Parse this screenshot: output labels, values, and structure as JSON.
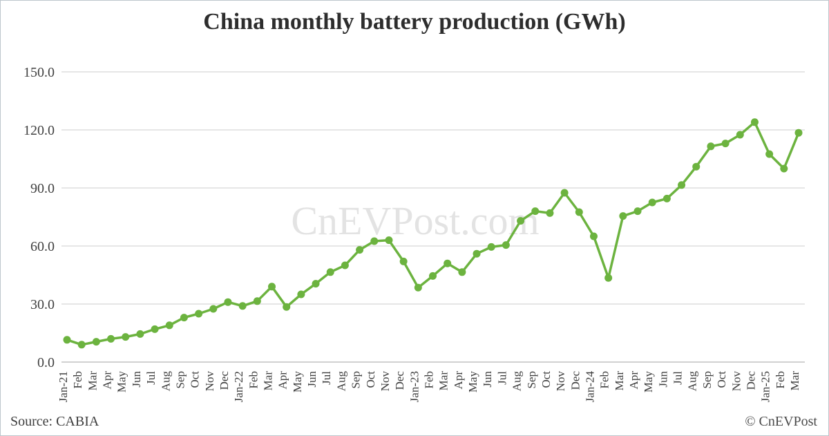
{
  "title": "China monthly battery production (GWh)",
  "watermark": "CnEVPost.com",
  "footer": {
    "source": "Source: CABIA",
    "credit": "© CnEVPost"
  },
  "colors": {
    "series_green": "#6cb33f",
    "gridline": "#d6d6d6",
    "axis_line": "#c2c2c2",
    "tick_text": "#3f3f3f",
    "watermark_gray": "#e3e3e3",
    "title_text": "#2d2d2d"
  },
  "chart_data": {
    "type": "line",
    "title": "China monthly battery production (GWh)",
    "xlabel": "",
    "ylabel": "",
    "ylim": [
      0,
      150
    ],
    "yticks": [
      0,
      30,
      60,
      90,
      120,
      150
    ],
    "ytick_labels": [
      "0.0",
      "30.0",
      "60.0",
      "90.0",
      "120.0",
      "150.0"
    ],
    "grid": "horizontal",
    "legend": "none",
    "marker": "circle",
    "categories": [
      "Jan-21",
      "Feb",
      "Mar",
      "Apr",
      "May",
      "Jun",
      "Jul",
      "Aug",
      "Sep",
      "Oct",
      "Nov",
      "Dec",
      "Jan-22",
      "Feb",
      "Mar",
      "Apr",
      "May",
      "Jun",
      "Jul",
      "Aug",
      "Sep",
      "Oct",
      "Nov",
      "Dec",
      "Jan-23",
      "Feb",
      "Mar",
      "Apr",
      "May",
      "Jun",
      "Jul",
      "Aug",
      "Sep",
      "Oct",
      "Nov",
      "Dec",
      "Jan-24",
      "Feb",
      "Mar",
      "Apr",
      "May",
      "Jun",
      "Jul",
      "Aug",
      "Sep",
      "Oct",
      "Nov",
      "Dec",
      "Jan-25",
      "Feb",
      "Mar"
    ],
    "series": [
      {
        "name": "China monthly battery production (GWh)",
        "color": "#6cb33f",
        "values": [
          11.5,
          9.0,
          10.5,
          12.0,
          13.0,
          14.5,
          17.0,
          19.0,
          23.0,
          25.0,
          27.5,
          31.0,
          29.0,
          31.5,
          39.0,
          28.5,
          35.0,
          40.5,
          46.5,
          50.0,
          58.0,
          62.5,
          63.0,
          52.0,
          38.5,
          44.5,
          51.0,
          46.5,
          56.0,
          59.5,
          60.5,
          73.0,
          78.0,
          77.0,
          87.5,
          77.5,
          65.0,
          43.5,
          75.5,
          78.0,
          82.5,
          84.5,
          91.5,
          101.0,
          111.5,
          113.0,
          117.5,
          124.0,
          107.5,
          100.0,
          118.5
        ]
      }
    ]
  }
}
